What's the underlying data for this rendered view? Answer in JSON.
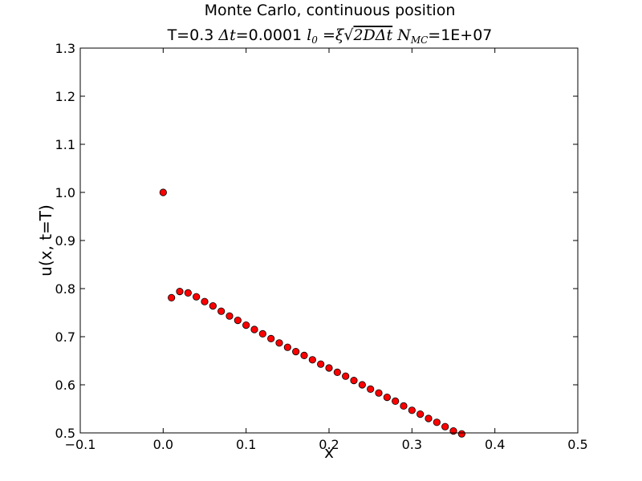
{
  "chart_data": {
    "type": "scatter",
    "title_line1": "Monte Carlo, continuous position",
    "title_line2": {
      "p1": "T=0.3 ",
      "m1": "Δt",
      "p2": "=0.0001 ",
      "m2": "l",
      "m2_sub": "0",
      "m3": " =ξ",
      "m4": "√",
      "m5": "2DΔt",
      "m6": " N",
      "m6_sub": "MC",
      "p3": "=1E+07"
    },
    "xlabel": "x",
    "ylabel": "u(x, t=T)",
    "xlim": [
      -0.1,
      0.5
    ],
    "ylim": [
      0.5,
      1.3
    ],
    "xticks": [
      -0.1,
      0.0,
      0.1,
      0.2,
      0.3,
      0.4,
      0.5
    ],
    "xtick_labels": [
      "−0.1",
      "0.0",
      "0.1",
      "0.2",
      "0.3",
      "0.4",
      "0.5"
    ],
    "yticks": [
      0.5,
      0.6,
      0.7,
      0.8,
      0.9,
      1.0,
      1.1,
      1.2,
      1.3
    ],
    "ytick_labels": [
      "0.5",
      "0.6",
      "0.7",
      "0.8",
      "0.9",
      "1.0",
      "1.1",
      "1.2",
      "1.3"
    ],
    "grid": false,
    "marker_color": "#ff0000",
    "marker_edge": "#000000",
    "points": [
      {
        "x": 0.0,
        "y": 1.0
      },
      {
        "x": 0.01,
        "y": 0.781
      },
      {
        "x": 0.02,
        "y": 0.794
      },
      {
        "x": 0.03,
        "y": 0.791
      },
      {
        "x": 0.04,
        "y": 0.783
      },
      {
        "x": 0.05,
        "y": 0.773
      },
      {
        "x": 0.06,
        "y": 0.764
      },
      {
        "x": 0.07,
        "y": 0.753
      },
      {
        "x": 0.08,
        "y": 0.743
      },
      {
        "x": 0.09,
        "y": 0.734
      },
      {
        "x": 0.1,
        "y": 0.724
      },
      {
        "x": 0.11,
        "y": 0.715
      },
      {
        "x": 0.12,
        "y": 0.706
      },
      {
        "x": 0.13,
        "y": 0.696
      },
      {
        "x": 0.14,
        "y": 0.687
      },
      {
        "x": 0.15,
        "y": 0.678
      },
      {
        "x": 0.16,
        "y": 0.669
      },
      {
        "x": 0.17,
        "y": 0.661
      },
      {
        "x": 0.18,
        "y": 0.652
      },
      {
        "x": 0.19,
        "y": 0.643
      },
      {
        "x": 0.2,
        "y": 0.635
      },
      {
        "x": 0.21,
        "y": 0.626
      },
      {
        "x": 0.22,
        "y": 0.618
      },
      {
        "x": 0.23,
        "y": 0.609
      },
      {
        "x": 0.24,
        "y": 0.6
      },
      {
        "x": 0.25,
        "y": 0.591
      },
      {
        "x": 0.26,
        "y": 0.583
      },
      {
        "x": 0.27,
        "y": 0.574
      },
      {
        "x": 0.28,
        "y": 0.566
      },
      {
        "x": 0.29,
        "y": 0.556
      },
      {
        "x": 0.3,
        "y": 0.547
      },
      {
        "x": 0.31,
        "y": 0.539
      },
      {
        "x": 0.32,
        "y": 0.53
      },
      {
        "x": 0.33,
        "y": 0.522
      },
      {
        "x": 0.34,
        "y": 0.513
      },
      {
        "x": 0.35,
        "y": 0.504
      },
      {
        "x": 0.36,
        "y": 0.498
      }
    ]
  }
}
